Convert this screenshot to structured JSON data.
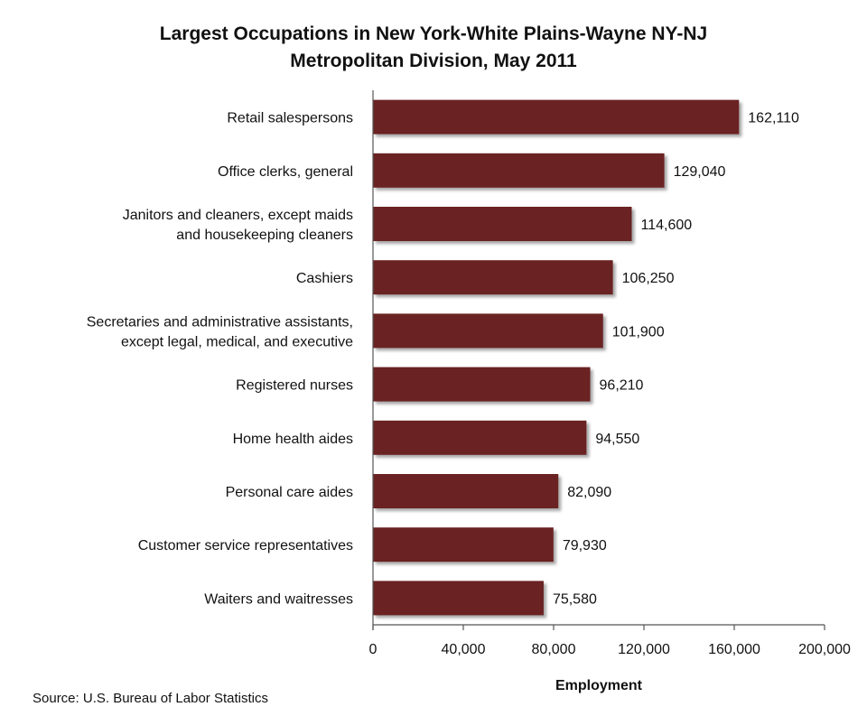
{
  "chart_data": {
    "type": "bar",
    "orientation": "horizontal",
    "title": "Largest Occupations in New York-White Plains-Wayne NY-NJ Metropolitan Division, May 2011",
    "title_lines": [
      "Largest Occupations in New York-White Plains-Wayne NY-NJ",
      "Metropolitan Division, May 2011"
    ],
    "categories": [
      [
        "Retail salespersons"
      ],
      [
        "Office clerks, general"
      ],
      [
        "Janitors and cleaners, except maids",
        "and housekeeping cleaners"
      ],
      [
        "Cashiers"
      ],
      [
        "Secretaries and administrative assistants,",
        "except legal, medical, and executive"
      ],
      [
        "Registered nurses"
      ],
      [
        "Home health aides"
      ],
      [
        "Personal care aides"
      ],
      [
        "Customer service representatives"
      ],
      [
        "Waiters and waitresses"
      ]
    ],
    "values": [
      162110,
      129040,
      114600,
      106250,
      101900,
      96210,
      94550,
      82090,
      79930,
      75580
    ],
    "value_labels": [
      "162,110",
      "129,040",
      "114,600",
      "106,250",
      "101,900",
      "96,210",
      "94,550",
      "82,090",
      "79,930",
      "75,580"
    ],
    "xlabel": "Employment",
    "ylabel": "",
    "xlim": [
      0,
      200000
    ],
    "xticks": [
      0,
      40000,
      80000,
      120000,
      160000,
      200000
    ],
    "xtick_labels": [
      "0",
      "40,000",
      "80,000",
      "120,000",
      "160,000",
      "200,000"
    ],
    "grid": false,
    "legend": "none",
    "bar_color": "#6B2424",
    "source": "Source:  U.S. Bureau of Labor Statistics"
  }
}
